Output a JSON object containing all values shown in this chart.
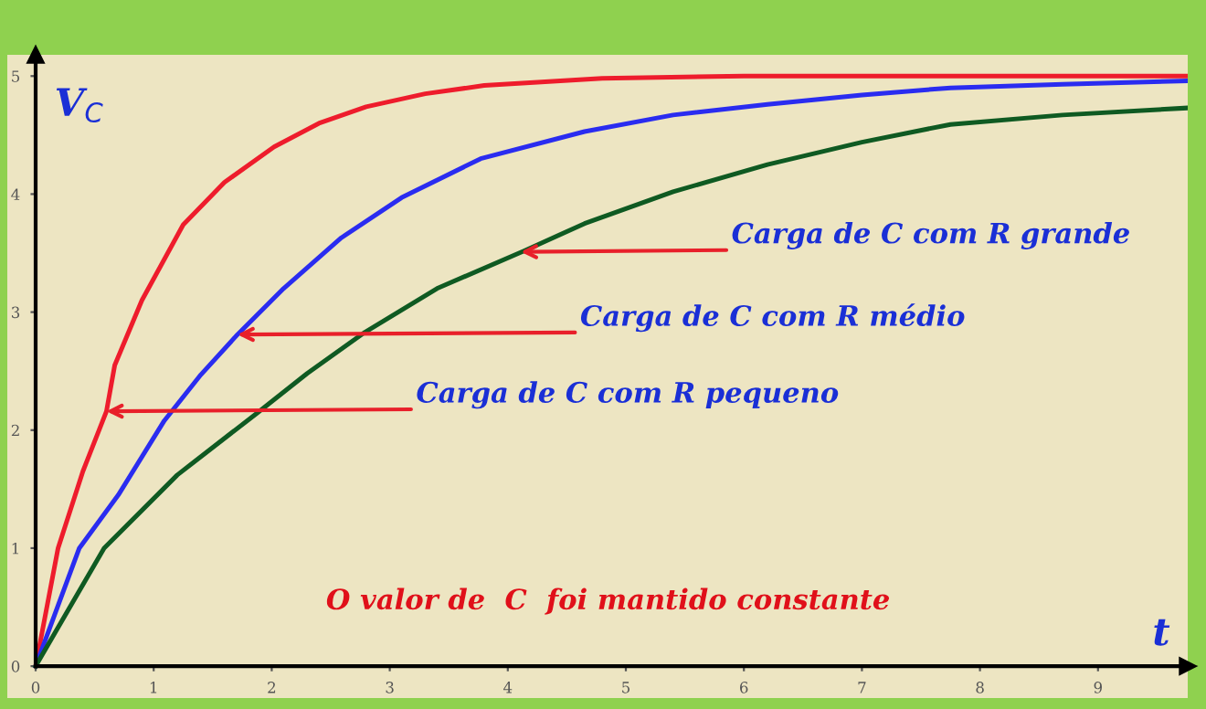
{
  "chart_data": {
    "type": "line",
    "xlabel": "t",
    "ylabel": "V$_{C}$",
    "xlim": [
      -0.24,
      9.76
    ],
    "ylim": [
      -0.27,
      5.18
    ],
    "xticks": [
      0,
      1,
      2,
      3,
      4,
      5,
      6,
      7,
      8,
      9
    ],
    "yticks": [
      0,
      1,
      2,
      3,
      4,
      5
    ],
    "legend": false,
    "marker": "none",
    "line_style": "solid",
    "series": [
      {
        "color": "#ee1c2c",
        "x": [
          0,
          0.19,
          0.4,
          0.6,
          0.67,
          0.9,
          1.25,
          1.6,
          2.02,
          2.4,
          2.8,
          3.3,
          3.8,
          4.8,
          6,
          7,
          8,
          9,
          9.76
        ],
        "values": [
          0,
          1.0,
          1.65,
          2.16,
          2.55,
          3.1,
          3.74,
          4.1,
          4.4,
          4.6,
          4.74,
          4.85,
          4.92,
          4.98,
          5.0,
          5.0,
          5.0,
          5.0,
          5.0
        ]
      },
      {
        "color": "#2a2cf0",
        "x": [
          0,
          0.37,
          0.7,
          1.09,
          1.4,
          1.71,
          2.1,
          2.59,
          3.1,
          3.77,
          4.65,
          5.4,
          6.2,
          7,
          7.75,
          8.7,
          9.76
        ],
        "values": [
          0,
          1.0,
          1.45,
          2.08,
          2.47,
          2.81,
          3.2,
          3.63,
          3.97,
          4.3,
          4.53,
          4.67,
          4.76,
          4.84,
          4.9,
          4.93,
          4.96
        ]
      },
      {
        "color": "#0f5a22",
        "x": [
          0,
          0.58,
          1.2,
          1.87,
          2.3,
          2.79,
          3.4,
          4.14,
          4.65,
          5.4,
          6.2,
          7,
          7.75,
          8.7,
          9.76
        ],
        "values": [
          0,
          1.0,
          1.62,
          2.14,
          2.48,
          2.83,
          3.2,
          3.52,
          3.75,
          4.02,
          4.25,
          4.44,
          4.59,
          4.67,
          4.73
        ]
      }
    ],
    "annotations": [
      {
        "text": "Carga de C com R grande",
        "x": 4.11,
        "y": 3.51
      },
      {
        "text": "Carga de C com R médio",
        "x": 1.71,
        "y": 2.81
      },
      {
        "text": "Carga de C com R pequeno",
        "x": 0.6,
        "y": 2.16
      },
      "O valor de  C  foi mantido constante"
    ]
  }
}
